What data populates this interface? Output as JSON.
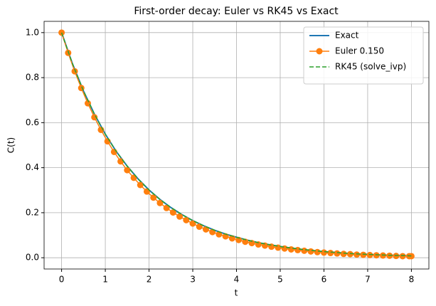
{
  "chart_data": {
    "type": "line",
    "title": "First-order decay: Euler vs RK45 vs Exact",
    "x_label": "t",
    "y_label": "C(t)",
    "xlim": [
      -0.4,
      8.4
    ],
    "ylim": [
      -0.05,
      1.05
    ],
    "xticks": [
      0,
      1,
      2,
      3,
      4,
      5,
      6,
      7,
      8
    ],
    "yticks": [
      {
        "value": 0,
        "label": "0.0"
      },
      {
        "value": 0.2,
        "label": "0.2"
      },
      {
        "value": 0.4,
        "label": "0.4"
      },
      {
        "value": 0.6,
        "label": "0.6"
      },
      {
        "value": 0.8,
        "label": "0.8"
      },
      {
        "value": 1,
        "label": "1.0"
      }
    ],
    "grid": true,
    "legend": "upper right",
    "series": [
      {
        "name": "Exact",
        "color": "#1f77b4",
        "linestyle": "solid",
        "linewidth": 2,
        "x": [
          0,
          0.25,
          0.5,
          0.75,
          1,
          1.25,
          1.5,
          1.75,
          2,
          2.25,
          2.5,
          2.75,
          3,
          3.25,
          3.5,
          3.75,
          4,
          4.25,
          4.5,
          4.75,
          5,
          5.25,
          5.5,
          5.75,
          6,
          6.25,
          6.5,
          6.75,
          7,
          7.25,
          7.5,
          7.75,
          8
        ],
        "values": [
          1.0,
          0.861,
          0.741,
          0.638,
          0.549,
          0.472,
          0.407,
          0.35,
          0.301,
          0.259,
          0.223,
          0.192,
          0.165,
          0.142,
          0.122,
          0.105,
          0.091,
          0.078,
          0.067,
          0.058,
          0.05,
          0.043,
          0.037,
          0.032,
          0.027,
          0.024,
          0.02,
          0.017,
          0.015,
          0.013,
          0.011,
          0.01,
          0.008
        ]
      },
      {
        "name": "Euler 0.150",
        "color": "#ff7f0e",
        "linestyle": "solid",
        "linewidth": 1.5,
        "marker": "o",
        "x": [
          0,
          0.15,
          0.3,
          0.45,
          0.6,
          0.75,
          0.9,
          1.05,
          1.2,
          1.35,
          1.5,
          1.65,
          1.8,
          1.95,
          2.1,
          2.25,
          2.4,
          2.55,
          2.7,
          2.85,
          3,
          3.15,
          3.3,
          3.45,
          3.6,
          3.75,
          3.9,
          4.05,
          4.2,
          4.35,
          4.5,
          4.65,
          4.8,
          4.95,
          5.1,
          5.25,
          5.4,
          5.55,
          5.7,
          5.85,
          6,
          6.15,
          6.3,
          6.45,
          6.6,
          6.75,
          6.9,
          7.05,
          7.2,
          7.35,
          7.5,
          7.65,
          7.8,
          7.95,
          8
        ],
        "values": [
          1.0,
          0.91,
          0.828,
          0.754,
          0.686,
          0.624,
          0.568,
          0.517,
          0.47,
          0.428,
          0.389,
          0.355,
          0.323,
          0.294,
          0.267,
          0.243,
          0.221,
          0.201,
          0.183,
          0.167,
          0.152,
          0.138,
          0.126,
          0.114,
          0.104,
          0.095,
          0.086,
          0.079,
          0.071,
          0.065,
          0.059,
          0.054,
          0.049,
          0.045,
          0.041,
          0.037,
          0.034,
          0.031,
          0.028,
          0.025,
          0.023,
          0.021,
          0.019,
          0.017,
          0.016,
          0.014,
          0.013,
          0.012,
          0.011,
          0.01,
          0.009,
          0.008,
          0.007,
          0.007,
          0.007
        ]
      },
      {
        "name": "RK45 (solve_ivp)",
        "color": "#2ca02c",
        "linestyle": "dashed",
        "linewidth": 1.5,
        "x": [
          0,
          0.25,
          0.5,
          0.75,
          1,
          1.25,
          1.5,
          1.75,
          2,
          2.25,
          2.5,
          2.75,
          3,
          3.25,
          3.5,
          3.75,
          4,
          4.25,
          4.5,
          4.75,
          5,
          5.25,
          5.5,
          5.75,
          6,
          6.25,
          6.5,
          6.75,
          7,
          7.25,
          7.5,
          7.75,
          8
        ],
        "values": [
          1.0,
          0.861,
          0.741,
          0.638,
          0.549,
          0.472,
          0.407,
          0.35,
          0.301,
          0.259,
          0.223,
          0.192,
          0.165,
          0.142,
          0.122,
          0.105,
          0.091,
          0.078,
          0.067,
          0.058,
          0.05,
          0.043,
          0.037,
          0.032,
          0.027,
          0.024,
          0.02,
          0.017,
          0.015,
          0.013,
          0.011,
          0.01,
          0.008
        ]
      }
    ]
  }
}
